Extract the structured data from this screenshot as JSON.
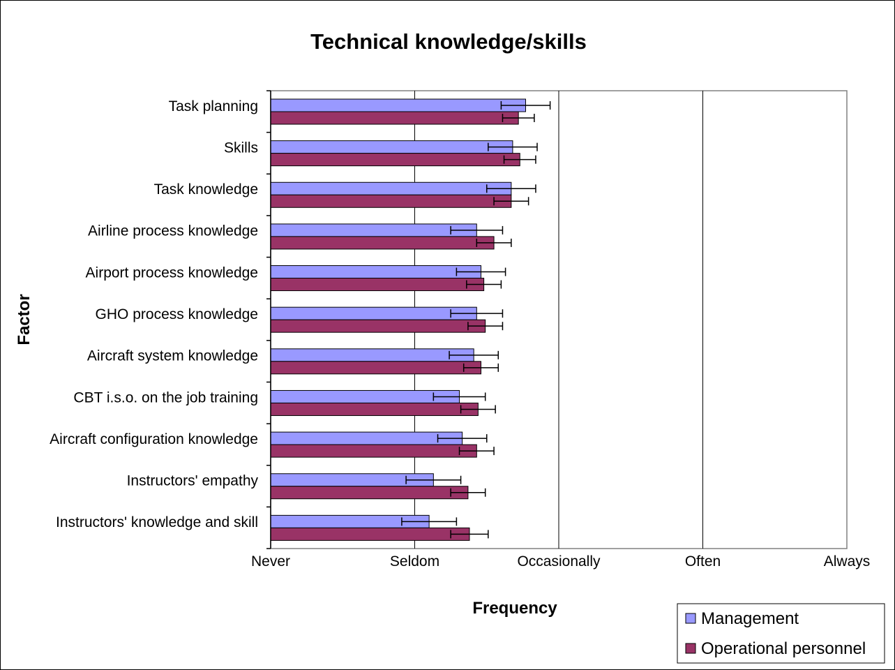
{
  "chart_data": {
    "type": "bar",
    "orientation": "horizontal",
    "title": "Technical knowledge/skills",
    "xlabel": "Frequency",
    "ylabel": "Factor",
    "x_scale": {
      "min": 1,
      "max": 5,
      "tick_labels": [
        "Never",
        "Seldom",
        "Occasionally",
        "Often",
        "Always"
      ]
    },
    "categories": [
      "Task planning",
      "Skills",
      "Task knowledge",
      "Airline process knowledge",
      "Airport process knowledge",
      "GHO process knowledge",
      "Aircraft system knowledge",
      "CBT i.s.o. on the job training",
      "Aircraft configuration knowledge",
      "Instructors' empathy",
      "Instructors' knowledge and skill"
    ],
    "series": [
      {
        "name": "Management",
        "color": "#9999ff",
        "values": [
          2.77,
          2.68,
          2.67,
          2.43,
          2.46,
          2.43,
          2.41,
          2.31,
          2.33,
          2.13,
          2.1
        ],
        "error": [
          0.17,
          0.17,
          0.17,
          0.18,
          0.17,
          0.18,
          0.17,
          0.18,
          0.17,
          0.19,
          0.19
        ]
      },
      {
        "name": "Operational personnel",
        "color": "#993366",
        "values": [
          2.72,
          2.73,
          2.67,
          2.55,
          2.48,
          2.49,
          2.46,
          2.44,
          2.43,
          2.37,
          2.38
        ],
        "error": [
          0.11,
          0.11,
          0.12,
          0.12,
          0.12,
          0.12,
          0.12,
          0.12,
          0.12,
          0.12,
          0.13
        ]
      }
    ],
    "grid": true,
    "legend": "bottom-right"
  }
}
